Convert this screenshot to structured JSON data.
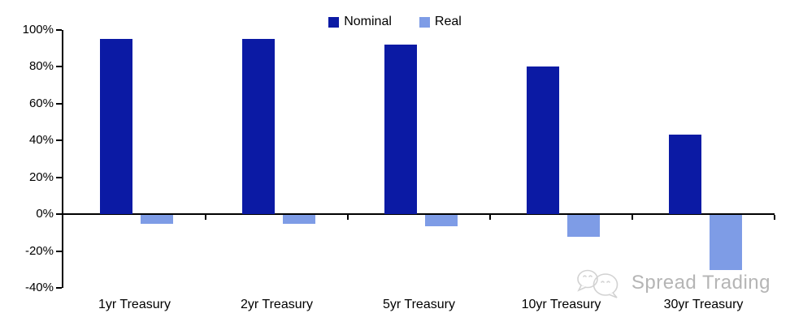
{
  "chart_data": {
    "type": "bar",
    "title": "",
    "categories": [
      "1yr Treasury",
      "2yr Treasury",
      "5yr Treasury",
      "10yr Treasury",
      "30yr Treasury"
    ],
    "series": [
      {
        "name": "Nominal",
        "color": "#0b1aa4",
        "values": [
          95,
          95,
          92,
          80,
          43
        ]
      },
      {
        "name": "Real",
        "color": "#7e9ce6",
        "values": [
          -5,
          -5,
          -6,
          -12,
          -30
        ]
      }
    ],
    "xlabel": "",
    "ylabel": "",
    "ylim": [
      -40,
      100
    ],
    "ytick_step": 20,
    "ytick_labels": [
      "100%",
      "80%",
      "60%",
      "40%",
      "20%",
      "0%",
      "-20%",
      "-40%"
    ],
    "grid": false,
    "legend_position": "top-center"
  },
  "legend": {
    "items": [
      {
        "label": "Nominal",
        "color": "#0b1aa4"
      },
      {
        "label": "Real",
        "color": "#7e9ce6"
      }
    ]
  },
  "axis": {
    "color": "#000000"
  },
  "watermark": {
    "text": "Spread Trading",
    "icon": "chat-bubbles-logo-icon",
    "color": "#b5b5b5"
  }
}
